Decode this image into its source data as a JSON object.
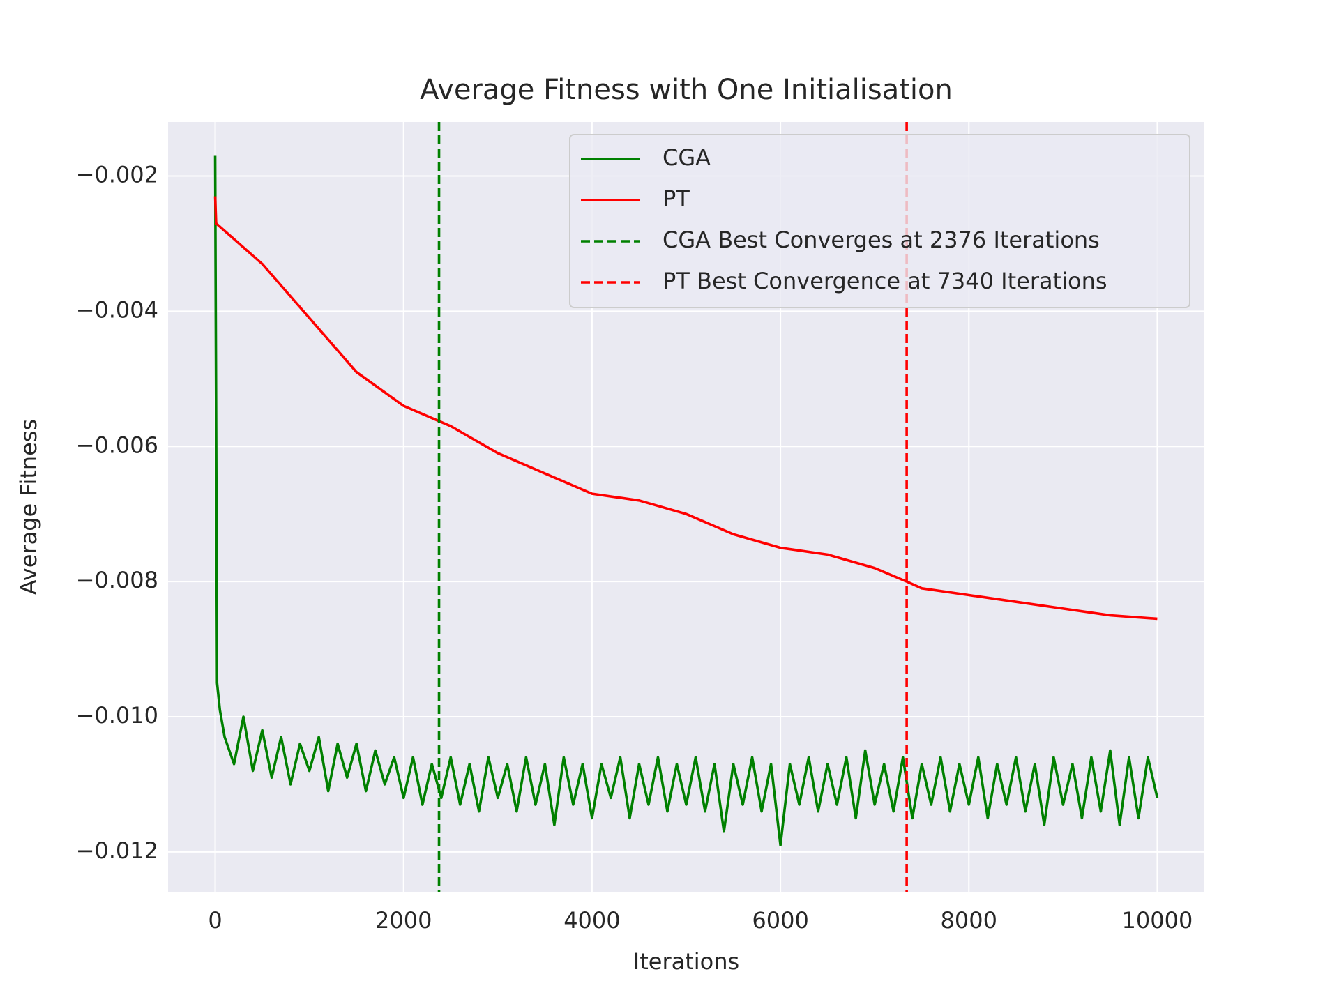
{
  "chart_data": {
    "type": "line",
    "title": "Average Fitness with One Initialisation",
    "xlabel": "Iterations",
    "ylabel": "Average Fitness",
    "xlim": [
      -500,
      10500
    ],
    "xticks": [
      0,
      2000,
      4000,
      6000,
      8000,
      10000
    ],
    "ylim": [
      -0.0126,
      -0.0012
    ],
    "yticks": [
      {
        "value": -0.012,
        "label": "−0.012"
      },
      {
        "value": -0.01,
        "label": "−0.010"
      },
      {
        "value": -0.008,
        "label": "−0.008"
      },
      {
        "value": -0.006,
        "label": "−0.006"
      },
      {
        "value": -0.004,
        "label": "−0.004"
      },
      {
        "value": -0.002,
        "label": "−0.002"
      }
    ],
    "grid": true,
    "legend": "upper right",
    "series": [
      {
        "name": "CGA",
        "color": "#008000",
        "x": [
          0,
          20,
          50,
          100,
          200,
          300,
          400,
          500,
          600,
          700,
          800,
          900,
          1000,
          1100,
          1200,
          1300,
          1400,
          1500,
          1600,
          1700,
          1800,
          1900,
          2000,
          2100,
          2200,
          2300,
          2400,
          2500,
          2600,
          2700,
          2800,
          2900,
          3000,
          3100,
          3200,
          3300,
          3400,
          3500,
          3600,
          3700,
          3800,
          3900,
          4000,
          4100,
          4200,
          4300,
          4400,
          4500,
          4600,
          4700,
          4800,
          4900,
          5000,
          5100,
          5200,
          5300,
          5400,
          5500,
          5600,
          5700,
          5800,
          5900,
          6000,
          6100,
          6200,
          6300,
          6400,
          6500,
          6600,
          6700,
          6800,
          6900,
          7000,
          7100,
          7200,
          7300,
          7400,
          7500,
          7600,
          7700,
          7800,
          7900,
          8000,
          8100,
          8200,
          8300,
          8400,
          8500,
          8600,
          8700,
          8800,
          8900,
          9000,
          9100,
          9200,
          9300,
          9400,
          9500,
          9600,
          9700,
          9800,
          9900,
          10000
        ],
        "values": [
          -0.0017,
          -0.0095,
          -0.0099,
          -0.0103,
          -0.0107,
          -0.01,
          -0.0108,
          -0.0102,
          -0.0109,
          -0.0103,
          -0.011,
          -0.0104,
          -0.0108,
          -0.0103,
          -0.0111,
          -0.0104,
          -0.0109,
          -0.0104,
          -0.0111,
          -0.0105,
          -0.011,
          -0.0106,
          -0.0112,
          -0.0106,
          -0.0113,
          -0.0107,
          -0.0112,
          -0.0106,
          -0.0113,
          -0.0107,
          -0.0114,
          -0.0106,
          -0.0112,
          -0.0107,
          -0.0114,
          -0.0106,
          -0.0113,
          -0.0107,
          -0.0116,
          -0.0106,
          -0.0113,
          -0.0107,
          -0.0115,
          -0.0107,
          -0.0112,
          -0.0106,
          -0.0115,
          -0.0107,
          -0.0113,
          -0.0106,
          -0.0114,
          -0.0107,
          -0.0113,
          -0.0106,
          -0.0114,
          -0.0107,
          -0.0117,
          -0.0107,
          -0.0113,
          -0.0106,
          -0.0114,
          -0.0107,
          -0.0119,
          -0.0107,
          -0.0113,
          -0.0106,
          -0.0114,
          -0.0107,
          -0.0113,
          -0.0106,
          -0.0115,
          -0.0105,
          -0.0113,
          -0.0107,
          -0.0114,
          -0.0106,
          -0.0115,
          -0.0107,
          -0.0113,
          -0.0106,
          -0.0114,
          -0.0107,
          -0.0113,
          -0.0106,
          -0.0115,
          -0.0107,
          -0.0113,
          -0.0106,
          -0.0114,
          -0.0107,
          -0.0116,
          -0.0106,
          -0.0113,
          -0.0107,
          -0.0115,
          -0.0106,
          -0.0114,
          -0.0105,
          -0.0116,
          -0.0106,
          -0.0115,
          -0.0106,
          -0.0112
        ]
      },
      {
        "name": "PT",
        "color": "#ff0000",
        "x": [
          0,
          10,
          500,
          1000,
          1500,
          2000,
          2500,
          3000,
          3500,
          4000,
          4500,
          5000,
          5500,
          6000,
          6500,
          7000,
          7340,
          7500,
          8000,
          8500,
          9000,
          9500,
          10000
        ],
        "values": [
          -0.0023,
          -0.0027,
          -0.0033,
          -0.0041,
          -0.0049,
          -0.0054,
          -0.0057,
          -0.0061,
          -0.0064,
          -0.0067,
          -0.0068,
          -0.007,
          -0.0073,
          -0.0075,
          -0.0076,
          -0.0078,
          -0.008,
          -0.0081,
          -0.0082,
          -0.0083,
          -0.0084,
          -0.0085,
          -0.00855
        ]
      }
    ],
    "vlines": [
      {
        "name": "CGA Best Converges at 2376 Iterations",
        "x": 2376,
        "color": "#008000"
      },
      {
        "name": "PT Best Convergence at 7340 Iterations",
        "x": 7340,
        "color": "#ff0000"
      }
    ]
  }
}
